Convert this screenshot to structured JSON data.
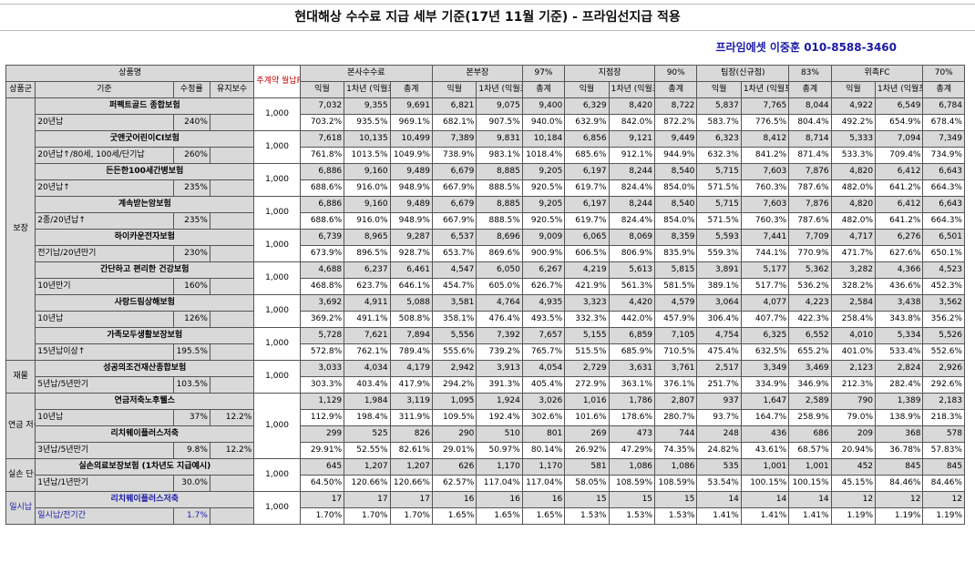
{
  "title": "현대해상 수수료 지급 세부 기준(17년 11월 기준) - 프라임선지급 적용",
  "contact": "프라임에셋 이중훈 010-8588-3460",
  "header": {
    "product_name": "상품명",
    "monthly_premium": "주계약 월납P",
    "groups": [
      {
        "name": "본사수수료",
        "pct": ""
      },
      {
        "name": "본부장",
        "pct": "97%"
      },
      {
        "name": "지점장",
        "pct": "90%"
      },
      {
        "name": "팀장(신규점)",
        "pct": "83%"
      },
      {
        "name": "위촉FC",
        "pct": "70%"
      }
    ],
    "sub": {
      "category": "상품군",
      "criteria": "기준",
      "correction_rate": "수정률",
      "maintenance": "유지보수",
      "next_month": "익월",
      "first_year": "1차년 (익월포함)",
      "total": "총계"
    }
  },
  "categories": [
    {
      "name": "보장",
      "rowspan": 16
    },
    {
      "name": "재물",
      "rowspan": 2
    },
    {
      "name": "연금 저축",
      "rowspan": 4
    },
    {
      "name": "실손 단독",
      "rowspan": 2
    },
    {
      "name": "일시납",
      "rowspan": 2
    }
  ],
  "products": [
    {
      "name": "퍼펙트골드 종합보험",
      "criteria": "20년납",
      "rate": "240%",
      "maint": "",
      "premium": "1,000",
      "vals": [
        "7,032",
        "9,355",
        "9,691",
        "6,821",
        "9,075",
        "9,400",
        "6,329",
        "8,420",
        "8,722",
        "5,837",
        "7,765",
        "8,044",
        "4,922",
        "6,549",
        "6,784"
      ],
      "pcts": [
        "703.2%",
        "935.5%",
        "969.1%",
        "682.1%",
        "907.5%",
        "940.0%",
        "632.9%",
        "842.0%",
        "872.2%",
        "583.7%",
        "776.5%",
        "804.4%",
        "492.2%",
        "654.9%",
        "678.4%"
      ]
    },
    {
      "name": "굿앤굿어린이CI보험",
      "criteria": "20년납↑/80세, 100세/단기납",
      "rate": "260%",
      "maint": "",
      "premium": "1,000",
      "vals": [
        "7,618",
        "10,135",
        "10,499",
        "7,389",
        "9,831",
        "10,184",
        "6,856",
        "9,121",
        "9,449",
        "6,323",
        "8,412",
        "8,714",
        "5,333",
        "7,094",
        "7,349"
      ],
      "pcts": [
        "761.8%",
        "1013.5%",
        "1049.9%",
        "738.9%",
        "983.1%",
        "1018.4%",
        "685.6%",
        "912.1%",
        "944.9%",
        "632.3%",
        "841.2%",
        "871.4%",
        "533.3%",
        "709.4%",
        "734.9%"
      ]
    },
    {
      "name": "든든한100세간병보험",
      "criteria": "20년납↑",
      "rate": "235%",
      "maint": "",
      "premium": "1,000",
      "vals": [
        "6,886",
        "9,160",
        "9,489",
        "6,679",
        "8,885",
        "9,205",
        "6,197",
        "8,244",
        "8,540",
        "5,715",
        "7,603",
        "7,876",
        "4,820",
        "6,412",
        "6,643"
      ],
      "pcts": [
        "688.6%",
        "916.0%",
        "948.9%",
        "667.9%",
        "888.5%",
        "920.5%",
        "619.7%",
        "824.4%",
        "854.0%",
        "571.5%",
        "760.3%",
        "787.6%",
        "482.0%",
        "641.2%",
        "664.3%"
      ]
    },
    {
      "name": "계속받는암보험",
      "criteria": "2종/20년납↑",
      "rate": "235%",
      "maint": "",
      "premium": "1,000",
      "vals": [
        "6,886",
        "9,160",
        "9,489",
        "6,679",
        "8,885",
        "9,205",
        "6,197",
        "8,244",
        "8,540",
        "5,715",
        "7,603",
        "7,876",
        "4,820",
        "6,412",
        "6,643"
      ],
      "pcts": [
        "688.6%",
        "916.0%",
        "948.9%",
        "667.9%",
        "888.5%",
        "920.5%",
        "619.7%",
        "824.4%",
        "854.0%",
        "571.5%",
        "760.3%",
        "787.6%",
        "482.0%",
        "641.2%",
        "664.3%"
      ]
    },
    {
      "name": "하이카운전자보험",
      "criteria": "전기납/20년만기",
      "rate": "230%",
      "maint": "",
      "premium": "1,000",
      "vals": [
        "6,739",
        "8,965",
        "9,287",
        "6,537",
        "8,696",
        "9,009",
        "6,065",
        "8,069",
        "8,359",
        "5,593",
        "7,441",
        "7,709",
        "4,717",
        "6,276",
        "6,501"
      ],
      "pcts": [
        "673.9%",
        "896.5%",
        "928.7%",
        "653.7%",
        "869.6%",
        "900.9%",
        "606.5%",
        "806.9%",
        "835.9%",
        "559.3%",
        "744.1%",
        "770.9%",
        "471.7%",
        "627.6%",
        "650.1%"
      ]
    },
    {
      "name": "간단하고 편리한 건강보험",
      "criteria": "10년만기",
      "rate": "160%",
      "maint": "",
      "premium": "1,000",
      "vals": [
        "4,688",
        "6,237",
        "6,461",
        "4,547",
        "6,050",
        "6,267",
        "4,219",
        "5,613",
        "5,815",
        "3,891",
        "5,177",
        "5,362",
        "3,282",
        "4,366",
        "4,523"
      ],
      "pcts": [
        "468.8%",
        "623.7%",
        "646.1%",
        "454.7%",
        "605.0%",
        "626.7%",
        "421.9%",
        "561.3%",
        "581.5%",
        "389.1%",
        "517.7%",
        "536.2%",
        "328.2%",
        "436.6%",
        "452.3%"
      ]
    },
    {
      "name": "사랑드림상해보험",
      "criteria": "10년납",
      "rate": "126%",
      "maint": "",
      "premium": "1,000",
      "vals": [
        "3,692",
        "4,911",
        "5,088",
        "3,581",
        "4,764",
        "4,935",
        "3,323",
        "4,420",
        "4,579",
        "3,064",
        "4,077",
        "4,223",
        "2,584",
        "3,438",
        "3,562"
      ],
      "pcts": [
        "369.2%",
        "491.1%",
        "508.8%",
        "358.1%",
        "476.4%",
        "493.5%",
        "332.3%",
        "442.0%",
        "457.9%",
        "306.4%",
        "407.7%",
        "422.3%",
        "258.4%",
        "343.8%",
        "356.2%"
      ]
    },
    {
      "name": "가족모두생활보장보험",
      "criteria": "15년납이상↑",
      "rate": "195.5%",
      "maint": "",
      "premium": "1,000",
      "vals": [
        "5,728",
        "7,621",
        "7,894",
        "5,556",
        "7,392",
        "7,657",
        "5,155",
        "6,859",
        "7,105",
        "4,754",
        "6,325",
        "6,552",
        "4,010",
        "5,334",
        "5,526"
      ],
      "pcts": [
        "572.8%",
        "762.1%",
        "789.4%",
        "555.6%",
        "739.2%",
        "765.7%",
        "515.5%",
        "685.9%",
        "710.5%",
        "475.4%",
        "632.5%",
        "655.2%",
        "401.0%",
        "533.4%",
        "552.6%"
      ]
    },
    {
      "name": "성공의조건재산종합보험",
      "criteria": "5년납/5년만기",
      "rate": "103.5%",
      "maint": "",
      "premium": "1,000",
      "vals": [
        "3,033",
        "4,034",
        "4,179",
        "2,942",
        "3,913",
        "4,054",
        "2,729",
        "3,631",
        "3,761",
        "2,517",
        "3,349",
        "3,469",
        "2,123",
        "2,824",
        "2,926"
      ],
      "pcts": [
        "303.3%",
        "403.4%",
        "417.9%",
        "294.2%",
        "391.3%",
        "405.4%",
        "272.9%",
        "363.1%",
        "376.1%",
        "251.7%",
        "334.9%",
        "346.9%",
        "212.3%",
        "282.4%",
        "292.6%"
      ]
    },
    {
      "name": "연금저축노후웰스",
      "criteria": "10년납",
      "rate": "37%",
      "maint": "12.2%",
      "premium": "1,000",
      "vals": [
        "1,129",
        "1,984",
        "3,119",
        "1,095",
        "1,924",
        "3,026",
        "1,016",
        "1,786",
        "2,807",
        "937",
        "1,647",
        "2,589",
        "790",
        "1,389",
        "2,183"
      ],
      "pcts": [
        "112.9%",
        "198.4%",
        "311.9%",
        "109.5%",
        "192.4%",
        "302.6%",
        "101.6%",
        "178.6%",
        "280.7%",
        "93.7%",
        "164.7%",
        "258.9%",
        "79.0%",
        "138.9%",
        "218.3%"
      ]
    },
    {
      "name": "리치웨이플러스저축",
      "criteria": "3년납/5년만기",
      "rate": "9.8%",
      "maint": "12.2%",
      "premium": "",
      "vals": [
        "299",
        "525",
        "826",
        "290",
        "510",
        "801",
        "269",
        "473",
        "744",
        "248",
        "436",
        "686",
        "209",
        "368",
        "578"
      ],
      "pcts": [
        "29.91%",
        "52.55%",
        "82.61%",
        "29.01%",
        "50.97%",
        "80.14%",
        "26.92%",
        "47.29%",
        "74.35%",
        "24.82%",
        "43.61%",
        "68.57%",
        "20.94%",
        "36.78%",
        "57.83%"
      ]
    },
    {
      "name": "실손의료보장보험 (1차년도 지급예시)",
      "criteria": "1년납/1년만기",
      "rate": "30.0%",
      "maint": "",
      "premium": "1,000",
      "vals": [
        "645",
        "1,207",
        "1,207",
        "626",
        "1,170",
        "1,170",
        "581",
        "1,086",
        "1,086",
        "535",
        "1,001",
        "1,001",
        "452",
        "845",
        "845"
      ],
      "pcts": [
        "64.50%",
        "120.66%",
        "120.66%",
        "62.57%",
        "117.04%",
        "117.04%",
        "58.05%",
        "108.59%",
        "108.59%",
        "53.54%",
        "100.15%",
        "100.15%",
        "45.15%",
        "84.46%",
        "84.46%"
      ]
    },
    {
      "name": "리치웨이플러스저축",
      "criteria": "일시납/전기간",
      "rate": "1.7%",
      "maint": "",
      "premium": "1,000",
      "vals": [
        "17",
        "17",
        "17",
        "16",
        "16",
        "16",
        "15",
        "15",
        "15",
        "14",
        "14",
        "14",
        "12",
        "12",
        "12"
      ],
      "pcts": [
        "1.70%",
        "1.70%",
        "1.70%",
        "1.65%",
        "1.65%",
        "1.65%",
        "1.53%",
        "1.53%",
        "1.53%",
        "1.41%",
        "1.41%",
        "1.41%",
        "1.19%",
        "1.19%",
        "1.19%"
      ]
    }
  ]
}
